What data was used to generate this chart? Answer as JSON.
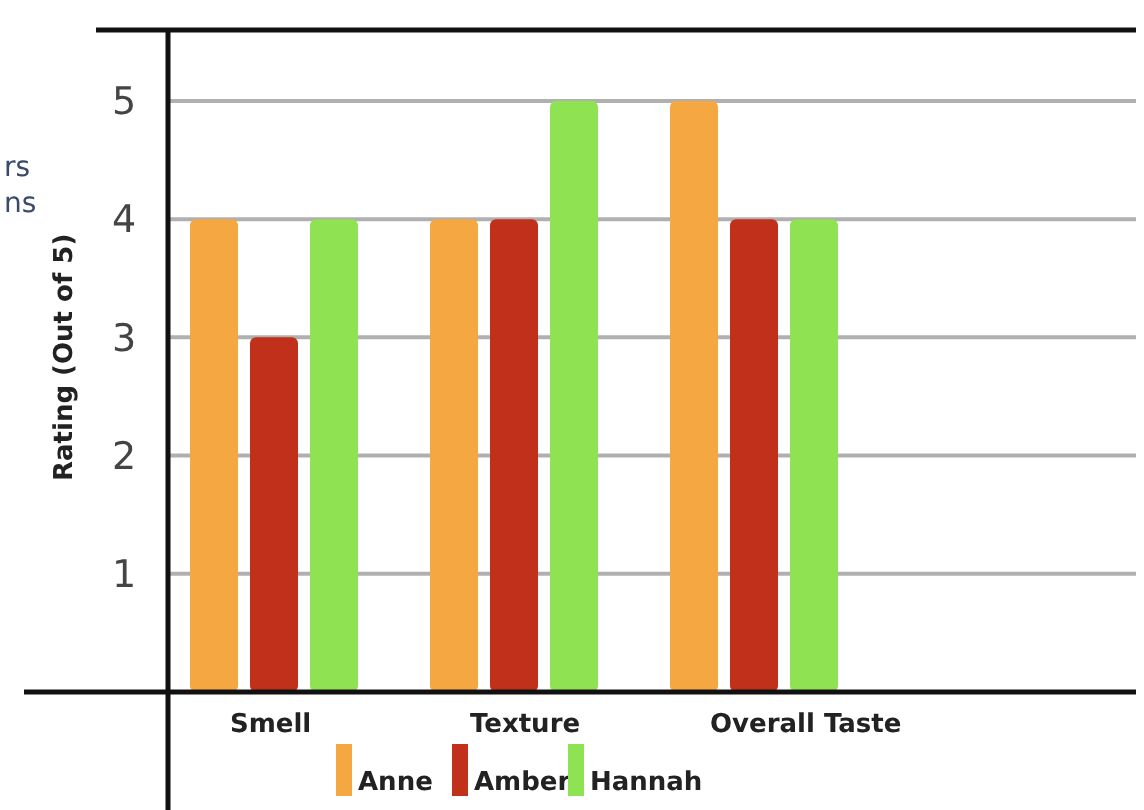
{
  "chart_data": {
    "type": "bar",
    "ylabel": "Rating (Out of 5)",
    "categories": [
      "Smell",
      "Texture",
      "Overall Taste"
    ],
    "series": [
      {
        "name": "Anne",
        "color": "#f5a742",
        "values": [
          4,
          4,
          5
        ]
      },
      {
        "name": "Amber",
        "color": "#c1301a",
        "values": [
          3,
          4,
          4
        ]
      },
      {
        "name": "Hannah",
        "color": "#8fe352",
        "values": [
          4,
          5,
          4
        ]
      }
    ],
    "ylim": [
      0,
      5.6
    ],
    "yticks": [
      1,
      2,
      3,
      4,
      5
    ],
    "grid": "y",
    "legend": "bottom",
    "annotations": [
      "rs",
      "ns"
    ]
  }
}
